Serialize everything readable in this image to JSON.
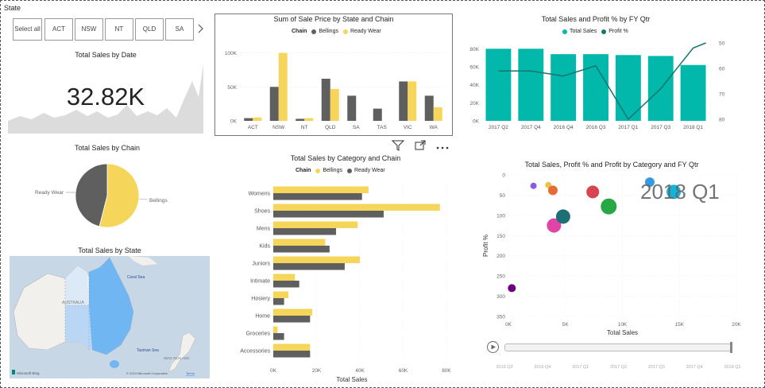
{
  "slicer": {
    "title": "State",
    "items": [
      "Select all",
      "ACT",
      "NSW",
      "NT",
      "QLD",
      "SA"
    ],
    "chevron": "chevron-right-icon"
  },
  "card": {
    "title": "Total Sales by Date",
    "value": "32.82K"
  },
  "colors": {
    "bellings": "#F5D65A",
    "ready_wear": "#5F5F5F",
    "teal": "#01B8AA",
    "line": "#16766F",
    "map_water": "#C8D7E6",
    "map_land": "#F2F0EC",
    "map_highlight": "#6FB6F2"
  },
  "state_chain_chart": {
    "title": "Sum of Sale Price by State and Chain",
    "legend_title": "Chain",
    "legend": [
      "Bellings",
      "Ready Wear"
    ]
  },
  "fy_chart": {
    "title": "Total Sales and Profit % by FY Qtr",
    "legend": [
      "Total Sales",
      "Profit %"
    ]
  },
  "pie": {
    "title": "Total Sales by Chain",
    "labels": [
      "Ready Wear",
      "Bellings"
    ]
  },
  "map": {
    "title": "Total Sales by State",
    "labels": {
      "coral_sea": "Coral Sea",
      "tasman_sea": "Tasman Sea",
      "australia": "AUSTRALIA",
      "new_zealand": "NEW ZEALAND"
    },
    "footer_left": "Microsoft Bing",
    "footer_right": "© 2024 Microsoft Corporation",
    "terms": "Terms"
  },
  "category_chart": {
    "title": "Total Sales by Category and Chain",
    "legend_title": "Chain",
    "legend": [
      "Bellings",
      "Ready Wear"
    ],
    "xlabel": "Total Sales"
  },
  "scatter": {
    "title": "Total Sales, Profit % and Profit by Category and FY Qtr",
    "xlabel": "Total Sales",
    "ylabel": "Profit %",
    "play_label": "2018 Q1",
    "timeline": [
      "2016 Q3",
      "2016 Q4",
      "2017 Q1",
      "2017 Q2",
      "2017 Q3",
      "2017 Q4",
      "2018 Q1"
    ]
  },
  "toolbar": {
    "icons": [
      "filter-icon",
      "focus-mode-icon",
      "more-options-icon"
    ]
  },
  "chart_data": [
    {
      "type": "bar",
      "title": "Sum of Sale Price by State and Chain",
      "categories": [
        "ACT",
        "NSW",
        "NT",
        "QLD",
        "SA",
        "TAS",
        "VIC",
        "WA"
      ],
      "series": [
        {
          "name": "Bellings",
          "values": [
            5,
            100,
            4,
            47,
            0,
            0,
            58,
            20
          ]
        },
        {
          "name": "Ready Wear",
          "values": [
            4,
            50,
            3,
            62,
            37,
            18,
            58,
            37
          ]
        }
      ],
      "y_ticks": [
        "0K",
        "50K",
        "100K"
      ],
      "ylim": [
        0,
        110
      ],
      "legend_title": "Chain"
    },
    {
      "type": "bar",
      "title": "Total Sales and Profit % by FY Qtr",
      "categories": [
        "2017 Q2",
        "2017 Q4",
        "2016 Q4",
        "2016 Q3",
        "2017 Q1",
        "2017 Q3",
        "2018 Q1"
      ],
      "series": [
        {
          "name": "Total Sales",
          "values": [
            80,
            80,
            74,
            74,
            73,
            72,
            62
          ]
        },
        {
          "name": "Profit %",
          "values": [
            61,
            61,
            63,
            59,
            80,
            68,
            52
          ]
        }
      ],
      "y_ticks": [
        "0K",
        "20K",
        "40K",
        "60K",
        "80K"
      ],
      "y2_ticks": [
        "50",
        "60",
        "70",
        "80"
      ],
      "ylim": [
        0,
        90
      ],
      "y2lim": [
        50,
        80
      ]
    },
    {
      "type": "pie",
      "title": "Total Sales by Chain",
      "categories": [
        "Bellings",
        "Ready Wear"
      ],
      "values": [
        54,
        46
      ]
    },
    {
      "type": "bar",
      "title": "Total Sales by Category and Chain",
      "orientation": "horizontal",
      "categories": [
        "Womens",
        "Shoes",
        "Mens",
        "Kids",
        "Juniors",
        "Intimate",
        "Hosiery",
        "Home",
        "Groceries",
        "Accessories"
      ],
      "series": [
        {
          "name": "Bellings",
          "values": [
            44,
            77,
            39,
            24,
            40,
            10,
            7,
            18,
            2,
            17
          ]
        },
        {
          "name": "Ready Wear",
          "values": [
            41,
            51,
            29,
            26,
            33,
            12,
            5,
            17,
            5,
            17
          ]
        }
      ],
      "x_ticks": [
        "0K",
        "20K",
        "40K",
        "60K",
        "80K"
      ],
      "xlim": [
        0,
        80
      ],
      "xlabel": "Total Sales",
      "legend_title": "Chain"
    },
    {
      "type": "scatter",
      "title": "Total Sales, Profit % and Profit by Category and FY Qtr",
      "points": [
        {
          "x": 0.3,
          "y": 280,
          "size": 5,
          "color": "#6B007B"
        },
        {
          "x": 2.2,
          "y": 27,
          "size": 4,
          "color": "#8B5CE0"
        },
        {
          "x": 3.5,
          "y": 25,
          "size": 4,
          "color": "#E8C547"
        },
        {
          "x": 3.9,
          "y": 38,
          "size": 6,
          "color": "#E66C37"
        },
        {
          "x": 4.0,
          "y": 125,
          "size": 9,
          "color": "#E044A7"
        },
        {
          "x": 4.8,
          "y": 103,
          "size": 9,
          "color": "#1D6E75"
        },
        {
          "x": 7.4,
          "y": 42,
          "size": 8,
          "color": "#D64550"
        },
        {
          "x": 8.8,
          "y": 78,
          "size": 10,
          "color": "#28A745"
        },
        {
          "x": 12.4,
          "y": 18,
          "size": 6,
          "color": "#3599E6"
        },
        {
          "x": 14.5,
          "y": 42,
          "size": 9,
          "color": "#12B5D9"
        }
      ],
      "x_ticks": [
        "0K",
        "5K",
        "10K",
        "15K",
        "20K"
      ],
      "y_ticks": [
        "0",
        "50",
        "100",
        "150",
        "200",
        "250",
        "300",
        "350"
      ],
      "xlim": [
        0,
        20
      ],
      "ylim": [
        0,
        350
      ],
      "xlabel": "Total Sales",
      "ylabel": "Profit %"
    }
  ]
}
